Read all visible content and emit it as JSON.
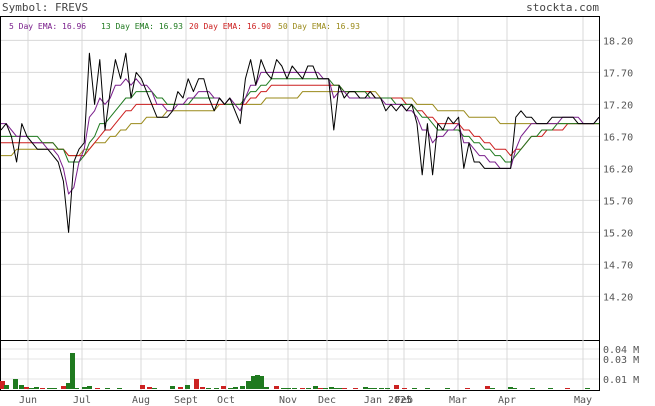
{
  "header": {
    "symbol_label": "Symbol: FREVS",
    "brand": "stockta.com"
  },
  "legend": [
    {
      "label": "5 Day EMA:",
      "value": "16.96",
      "color": "#7a1f8c"
    },
    {
      "label": "13 Day EMA:",
      "value": "16.93",
      "color": "#1f7a1f"
    },
    {
      "label": "20 Day EMA:",
      "value": "16.90",
      "color": "#cc1f1f"
    },
    {
      "label": "50 Day EMA:",
      "value": "16.93",
      "color": "#9a8a1a"
    }
  ],
  "chart_data": {
    "type": "line",
    "title": "Symbol: FREVS",
    "price_axis": {
      "ticks": [
        "18.20",
        "17.70",
        "17.20",
        "16.70",
        "16.20",
        "15.70",
        "15.20",
        "14.70",
        "14.20"
      ],
      "ylim": [
        13.55,
        18.55
      ]
    },
    "volume_axis": {
      "ticks": [
        "0.04 M",
        "0.03 M",
        "0.01 M"
      ],
      "ylim": [
        0,
        0.045
      ]
    },
    "months": [
      "Jun",
      "Jul",
      "Aug",
      "Sept",
      "Oct",
      "Nov",
      "Dec",
      "Jan 2025",
      "Feb",
      "Mar",
      "Apr",
      "May"
    ],
    "x": [
      0,
      3,
      6,
      9,
      12,
      15,
      18,
      21,
      24,
      27,
      30,
      33,
      36,
      39,
      42,
      45,
      48,
      51,
      54,
      57,
      60,
      63,
      66,
      69,
      72,
      75,
      78,
      81,
      84,
      87,
      90,
      93,
      96,
      99,
      102,
      105,
      108,
      111,
      114,
      117,
      120,
      123,
      126,
      129,
      132,
      135,
      138,
      141,
      144,
      147,
      150,
      153,
      156,
      159,
      162,
      165,
      168,
      171,
      174,
      177,
      180,
      183,
      186,
      189,
      192,
      195,
      198,
      201,
      204,
      207,
      210,
      213,
      216,
      219,
      222,
      225,
      228,
      231,
      234,
      237,
      240,
      243,
      246,
      249,
      252,
      255,
      258,
      261,
      264,
      267,
      270,
      273,
      276,
      279,
      282,
      285,
      288,
      291,
      294,
      297,
      300,
      303,
      306,
      309,
      312,
      315,
      318,
      321,
      324,
      327,
      330,
      333,
      336,
      339,
      342,
      345
    ],
    "series": [
      {
        "name": "Price",
        "color": "#000000",
        "values": [
          16.8,
          16.9,
          16.7,
          16.3,
          16.9,
          16.7,
          16.6,
          16.5,
          16.5,
          16.5,
          16.4,
          16.3,
          16.0,
          15.2,
          16.3,
          16.5,
          16.6,
          18.0,
          17.2,
          17.9,
          16.8,
          17.4,
          17.9,
          17.6,
          18.0,
          17.3,
          17.7,
          17.6,
          17.4,
          17.2,
          17.0,
          17.0,
          17.0,
          17.1,
          17.4,
          17.3,
          17.6,
          17.4,
          17.6,
          17.6,
          17.3,
          17.1,
          17.3,
          17.2,
          17.3,
          17.1,
          16.9,
          17.6,
          17.9,
          17.5,
          17.9,
          17.7,
          17.6,
          17.9,
          17.8,
          17.6,
          17.8,
          17.7,
          17.6,
          17.8,
          17.8,
          17.6,
          17.6,
          17.6,
          16.8,
          17.5,
          17.3,
          17.4,
          17.4,
          17.3,
          17.3,
          17.4,
          17.3,
          17.3,
          17.1,
          17.2,
          17.1,
          17.2,
          17.1,
          17.2,
          16.9,
          16.1,
          16.9,
          16.1,
          16.9,
          16.8,
          17.0,
          16.9,
          17.0,
          16.2,
          16.6,
          16.3,
          16.3,
          16.2,
          16.2,
          16.2,
          16.2,
          16.2,
          16.2,
          17.0,
          17.1,
          17.0,
          17.0,
          16.9,
          16.9,
          16.9,
          17.0,
          17.0,
          17.0,
          17.0,
          17.0,
          16.9,
          16.9,
          16.9,
          16.9,
          17.0
        ]
      },
      {
        "name": "5 Day EMA",
        "color": "#7a1f8c",
        "values": [
          16.9,
          16.9,
          16.8,
          16.7,
          16.7,
          16.7,
          16.6,
          16.6,
          16.6,
          16.5,
          16.5,
          16.4,
          16.2,
          15.8,
          15.9,
          16.3,
          16.5,
          17.0,
          17.1,
          17.3,
          17.2,
          17.3,
          17.5,
          17.5,
          17.6,
          17.5,
          17.6,
          17.5,
          17.5,
          17.4,
          17.2,
          17.2,
          17.1,
          17.1,
          17.2,
          17.2,
          17.3,
          17.3,
          17.4,
          17.4,
          17.4,
          17.3,
          17.3,
          17.2,
          17.3,
          17.2,
          17.1,
          17.3,
          17.5,
          17.5,
          17.7,
          17.7,
          17.7,
          17.7,
          17.7,
          17.7,
          17.7,
          17.7,
          17.7,
          17.7,
          17.7,
          17.7,
          17.6,
          17.6,
          17.3,
          17.4,
          17.4,
          17.3,
          17.3,
          17.3,
          17.3,
          17.3,
          17.3,
          17.3,
          17.2,
          17.2,
          17.2,
          17.2,
          17.1,
          17.1,
          17.0,
          16.8,
          16.8,
          16.6,
          16.7,
          16.7,
          16.8,
          16.8,
          16.9,
          16.6,
          16.6,
          16.5,
          16.4,
          16.4,
          16.3,
          16.3,
          16.2,
          16.2,
          16.2,
          16.5,
          16.7,
          16.8,
          16.9,
          16.9,
          16.9,
          16.9,
          16.9,
          16.9,
          17.0,
          17.0,
          17.0,
          17.0,
          16.9,
          16.9,
          16.9,
          17.0
        ]
      },
      {
        "name": "13 Day EMA",
        "color": "#1f7a1f",
        "values": [
          16.7,
          16.7,
          16.7,
          16.7,
          16.7,
          16.7,
          16.7,
          16.7,
          16.6,
          16.6,
          16.6,
          16.5,
          16.5,
          16.3,
          16.3,
          16.3,
          16.4,
          16.6,
          16.7,
          16.9,
          16.9,
          17.0,
          17.1,
          17.2,
          17.3,
          17.3,
          17.4,
          17.4,
          17.4,
          17.4,
          17.3,
          17.3,
          17.2,
          17.2,
          17.2,
          17.2,
          17.2,
          17.3,
          17.3,
          17.3,
          17.3,
          17.3,
          17.3,
          17.2,
          17.2,
          17.2,
          17.2,
          17.3,
          17.4,
          17.4,
          17.5,
          17.5,
          17.6,
          17.6,
          17.6,
          17.6,
          17.6,
          17.6,
          17.6,
          17.6,
          17.6,
          17.6,
          17.6,
          17.6,
          17.5,
          17.5,
          17.4,
          17.4,
          17.4,
          17.4,
          17.4,
          17.3,
          17.3,
          17.3,
          17.3,
          17.3,
          17.2,
          17.2,
          17.2,
          17.2,
          17.1,
          17.0,
          17.0,
          16.9,
          16.8,
          16.8,
          16.8,
          16.8,
          16.8,
          16.7,
          16.7,
          16.6,
          16.6,
          16.5,
          16.5,
          16.4,
          16.4,
          16.3,
          16.3,
          16.4,
          16.5,
          16.6,
          16.7,
          16.7,
          16.8,
          16.8,
          16.8,
          16.9,
          16.9,
          16.9,
          16.9,
          16.9,
          16.9,
          16.9,
          16.9,
          16.9
        ]
      },
      {
        "name": "20 Day EMA",
        "color": "#cc1f1f",
        "values": [
          16.6,
          16.6,
          16.6,
          16.6,
          16.6,
          16.6,
          16.6,
          16.6,
          16.6,
          16.6,
          16.6,
          16.5,
          16.5,
          16.4,
          16.4,
          16.4,
          16.4,
          16.5,
          16.6,
          16.7,
          16.8,
          16.8,
          16.9,
          17.0,
          17.1,
          17.1,
          17.2,
          17.2,
          17.2,
          17.2,
          17.2,
          17.2,
          17.2,
          17.2,
          17.2,
          17.2,
          17.2,
          17.2,
          17.2,
          17.2,
          17.2,
          17.2,
          17.2,
          17.2,
          17.2,
          17.2,
          17.2,
          17.2,
          17.3,
          17.3,
          17.4,
          17.4,
          17.5,
          17.5,
          17.5,
          17.5,
          17.5,
          17.5,
          17.5,
          17.5,
          17.5,
          17.5,
          17.5,
          17.5,
          17.5,
          17.5,
          17.4,
          17.4,
          17.4,
          17.4,
          17.4,
          17.4,
          17.3,
          17.3,
          17.3,
          17.3,
          17.3,
          17.3,
          17.2,
          17.2,
          17.1,
          17.1,
          17.0,
          17.0,
          16.9,
          16.9,
          16.9,
          16.9,
          16.9,
          16.8,
          16.8,
          16.7,
          16.7,
          16.6,
          16.6,
          16.5,
          16.5,
          16.5,
          16.4,
          16.5,
          16.5,
          16.6,
          16.7,
          16.7,
          16.7,
          16.8,
          16.8,
          16.8,
          16.8,
          16.9,
          16.9,
          16.9,
          16.9,
          16.9,
          16.9,
          16.9
        ]
      },
      {
        "name": "50 Day EMA",
        "color": "#9a8a1a",
        "values": [
          16.4,
          16.4,
          16.4,
          16.5,
          16.5,
          16.5,
          16.5,
          16.5,
          16.5,
          16.5,
          16.5,
          16.5,
          16.5,
          16.4,
          16.4,
          16.4,
          16.5,
          16.5,
          16.6,
          16.6,
          16.6,
          16.7,
          16.7,
          16.8,
          16.8,
          16.9,
          16.9,
          16.9,
          17.0,
          17.0,
          17.0,
          17.0,
          17.1,
          17.1,
          17.1,
          17.1,
          17.1,
          17.1,
          17.1,
          17.1,
          17.1,
          17.1,
          17.2,
          17.2,
          17.2,
          17.2,
          17.2,
          17.2,
          17.2,
          17.2,
          17.2,
          17.3,
          17.3,
          17.3,
          17.3,
          17.3,
          17.3,
          17.3,
          17.4,
          17.4,
          17.4,
          17.4,
          17.4,
          17.4,
          17.4,
          17.4,
          17.4,
          17.4,
          17.4,
          17.4,
          17.4,
          17.4,
          17.4,
          17.3,
          17.3,
          17.3,
          17.3,
          17.3,
          17.3,
          17.3,
          17.2,
          17.2,
          17.2,
          17.2,
          17.1,
          17.1,
          17.1,
          17.1,
          17.1,
          17.1,
          17.0,
          17.0,
          17.0,
          17.0,
          17.0,
          17.0,
          16.9,
          16.9,
          16.9,
          16.9,
          16.9,
          16.9,
          16.9,
          16.9,
          16.9,
          16.9,
          16.9,
          16.9,
          16.9,
          16.9,
          16.9,
          16.9,
          16.9,
          16.9,
          16.9,
          16.9
        ]
      }
    ],
    "volume": [
      {
        "x": 0,
        "v": 0.008,
        "color": "#cc2222"
      },
      {
        "x": 4,
        "v": 0.004,
        "color": "#1f7a1f"
      },
      {
        "x": 13,
        "v": 0.01,
        "color": "#1f7a1f"
      },
      {
        "x": 19,
        "v": 0.004,
        "color": "#1f7a1f"
      },
      {
        "x": 24,
        "v": 0.002,
        "color": "#cc2222"
      },
      {
        "x": 29,
        "v": 0.001,
        "color": "#1f7a1f"
      },
      {
        "x": 34,
        "v": 0.002,
        "color": "#1f7a1f"
      },
      {
        "x": 40,
        "v": 0.001,
        "color": "#cc2222"
      },
      {
        "x": 47,
        "v": 0.001,
        "color": "#1f7a1f"
      },
      {
        "x": 52,
        "v": 0.001,
        "color": "#1f7a1f"
      },
      {
        "x": 61,
        "v": 0.003,
        "color": "#cc2222"
      },
      {
        "x": 66,
        "v": 0.006,
        "color": "#1f7a1f"
      },
      {
        "x": 70,
        "v": 0.036,
        "color": "#1f7a1f"
      },
      {
        "x": 74,
        "v": 0.001,
        "color": "#1f7a1f"
      },
      {
        "x": 82,
        "v": 0.002,
        "color": "#1f7a1f"
      },
      {
        "x": 87,
        "v": 0.003,
        "color": "#1f7a1f"
      },
      {
        "x": 95,
        "v": 0.001,
        "color": "#cc2222"
      },
      {
        "x": 105,
        "v": 0.001,
        "color": "#1f7a1f"
      },
      {
        "x": 117,
        "v": 0.001,
        "color": "#1f7a1f"
      },
      {
        "x": 140,
        "v": 0.004,
        "color": "#cc2222"
      },
      {
        "x": 147,
        "v": 0.002,
        "color": "#cc2222"
      },
      {
        "x": 152,
        "v": 0.001,
        "color": "#1f7a1f"
      },
      {
        "x": 170,
        "v": 0.003,
        "color": "#1f7a1f"
      },
      {
        "x": 178,
        "v": 0.002,
        "color": "#cc2222"
      },
      {
        "x": 185,
        "v": 0.004,
        "color": "#1f7a1f"
      },
      {
        "x": 194,
        "v": 0.01,
        "color": "#cc2222"
      },
      {
        "x": 200,
        "v": 0.002,
        "color": "#cc2222"
      },
      {
        "x": 206,
        "v": 0.001,
        "color": "#1f7a1f"
      },
      {
        "x": 214,
        "v": 0.001,
        "color": "#1f7a1f"
      },
      {
        "x": 221,
        "v": 0.003,
        "color": "#cc2222"
      },
      {
        "x": 228,
        "v": 0.001,
        "color": "#1f7a1f"
      },
      {
        "x": 233,
        "v": 0.002,
        "color": "#1f7a1f"
      },
      {
        "x": 240,
        "v": 0.003,
        "color": "#1f7a1f"
      },
      {
        "x": 246,
        "v": 0.008,
        "color": "#1f7a1f"
      },
      {
        "x": 251,
        "v": 0.013,
        "color": "#1f7a1f"
      },
      {
        "x": 255,
        "v": 0.014,
        "color": "#1f7a1f"
      },
      {
        "x": 259,
        "v": 0.013,
        "color": "#1f7a1f"
      },
      {
        "x": 264,
        "v": 0.002,
        "color": "#1f7a1f"
      },
      {
        "x": 274,
        "v": 0.003,
        "color": "#cc2222"
      },
      {
        "x": 281,
        "v": 0.001,
        "color": "#1f7a1f"
      },
      {
        "x": 286,
        "v": 0.001,
        "color": "#1f7a1f"
      },
      {
        "x": 292,
        "v": 0.001,
        "color": "#1f7a1f"
      },
      {
        "x": 300,
        "v": 0.001,
        "color": "#cc2222"
      },
      {
        "x": 306,
        "v": 0.001,
        "color": "#1f7a1f"
      },
      {
        "x": 313,
        "v": 0.003,
        "color": "#1f7a1f"
      },
      {
        "x": 318,
        "v": 0.001,
        "color": "#cc2222"
      },
      {
        "x": 323,
        "v": 0.001,
        "color": "#1f7a1f"
      },
      {
        "x": 329,
        "v": 0.002,
        "color": "#1f7a1f"
      },
      {
        "x": 334,
        "v": 0.001,
        "color": "#1f7a1f"
      },
      {
        "x": 338,
        "v": 0.001,
        "color": "#1f7a1f"
      },
      {
        "x": 342,
        "v": 0.001,
        "color": "#cc2222"
      },
      {
        "x": 353,
        "v": 0.001,
        "color": "#cc2222"
      },
      {
        "x": 363,
        "v": 0.002,
        "color": "#1f7a1f"
      },
      {
        "x": 367,
        "v": 0.001,
        "color": "#1f7a1f"
      },
      {
        "x": 372,
        "v": 0.001,
        "color": "#1f7a1f"
      },
      {
        "x": 379,
        "v": 0.001,
        "color": "#1f7a1f"
      },
      {
        "x": 385,
        "v": 0.001,
        "color": "#1f7a1f"
      },
      {
        "x": 394,
        "v": 0.004,
        "color": "#cc2222"
      },
      {
        "x": 402,
        "v": 0.001,
        "color": "#cc2222"
      },
      {
        "x": 412,
        "v": 0.001,
        "color": "#1f7a1f"
      },
      {
        "x": 425,
        "v": 0.001,
        "color": "#1f7a1f"
      },
      {
        "x": 445,
        "v": 0.001,
        "color": "#1f7a1f"
      },
      {
        "x": 465,
        "v": 0.001,
        "color": "#cc2222"
      },
      {
        "x": 485,
        "v": 0.003,
        "color": "#cc2222"
      },
      {
        "x": 490,
        "v": 0.001,
        "color": "#1f7a1f"
      },
      {
        "x": 508,
        "v": 0.002,
        "color": "#1f7a1f"
      },
      {
        "x": 512,
        "v": 0.001,
        "color": "#1f7a1f"
      },
      {
        "x": 530,
        "v": 0.001,
        "color": "#1f7a1f"
      },
      {
        "x": 548,
        "v": 0.001,
        "color": "#1f7a1f"
      },
      {
        "x": 565,
        "v": 0.001,
        "color": "#cc2222"
      },
      {
        "x": 585,
        "v": 0.001,
        "color": "#1f7a1f"
      }
    ],
    "grid": true
  }
}
